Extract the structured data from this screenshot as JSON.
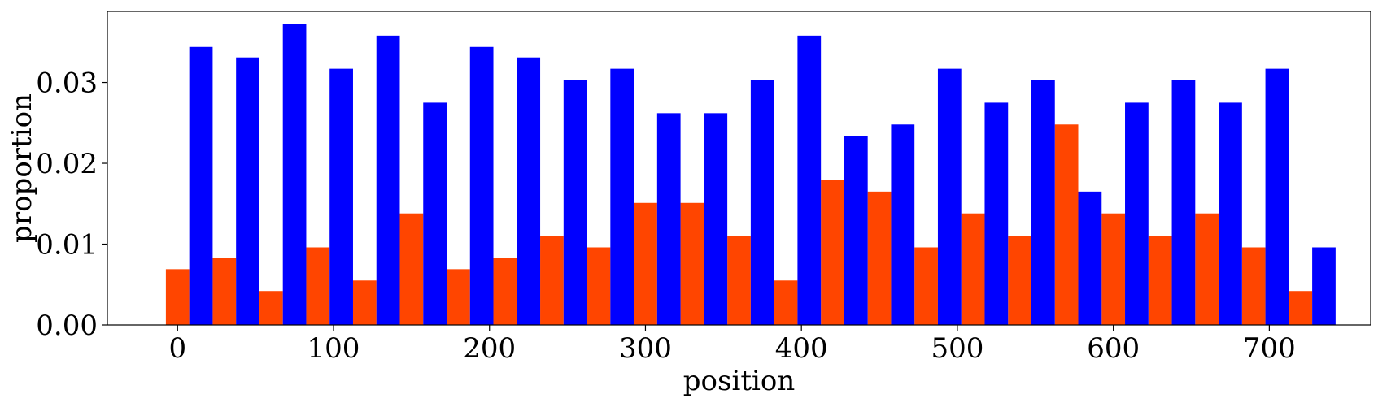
{
  "chart_data": {
    "type": "bar",
    "title": "",
    "xlabel": "position",
    "ylabel": "proportion",
    "xlim": [
      -45,
      765
    ],
    "ylim": [
      0,
      0.0388
    ],
    "bin_width": 15,
    "x_ticks": [
      {
        "value": 0,
        "label": "0"
      },
      {
        "value": 100,
        "label": "100"
      },
      {
        "value": 200,
        "label": "200"
      },
      {
        "value": 300,
        "label": "300"
      },
      {
        "value": 400,
        "label": "400"
      },
      {
        "value": 500,
        "label": "500"
      },
      {
        "value": 600,
        "label": "600"
      },
      {
        "value": 700,
        "label": "700"
      }
    ],
    "y_ticks": [
      {
        "value": 0.0,
        "label": "0.00"
      },
      {
        "value": 0.01,
        "label": "0.01"
      },
      {
        "value": 0.02,
        "label": "0.02"
      },
      {
        "value": 0.03,
        "label": "0.03"
      }
    ],
    "series": [
      {
        "color": "#ff4500",
        "x": [
          0,
          30,
          60,
          90,
          120,
          150,
          180,
          210,
          240,
          270,
          300,
          330,
          360,
          390,
          420,
          450,
          480,
          510,
          540,
          570,
          600,
          630,
          660,
          690,
          720
        ],
        "values": [
          0.0069,
          0.0083,
          0.0042,
          0.0096,
          0.0055,
          0.0138,
          0.0069,
          0.0083,
          0.011,
          0.0096,
          0.0151,
          0.0151,
          0.011,
          0.0055,
          0.0179,
          0.0165,
          0.0096,
          0.0138,
          0.011,
          0.0248,
          0.0138,
          0.011,
          0.0138,
          0.0096,
          0.0042
        ]
      },
      {
        "color": "#0000ff",
        "x": [
          15,
          45,
          75,
          105,
          135,
          165,
          195,
          225,
          255,
          285,
          315,
          345,
          375,
          405,
          435,
          465,
          495,
          525,
          555,
          585,
          615,
          645,
          675,
          705,
          735
        ],
        "values": [
          0.0344,
          0.0331,
          0.0372,
          0.0317,
          0.0358,
          0.0275,
          0.0344,
          0.0331,
          0.0303,
          0.0317,
          0.0262,
          0.0262,
          0.0303,
          0.0358,
          0.0234,
          0.0248,
          0.0317,
          0.0275,
          0.0303,
          0.0165,
          0.0275,
          0.0303,
          0.0275,
          0.0317,
          0.0096
        ]
      }
    ]
  }
}
